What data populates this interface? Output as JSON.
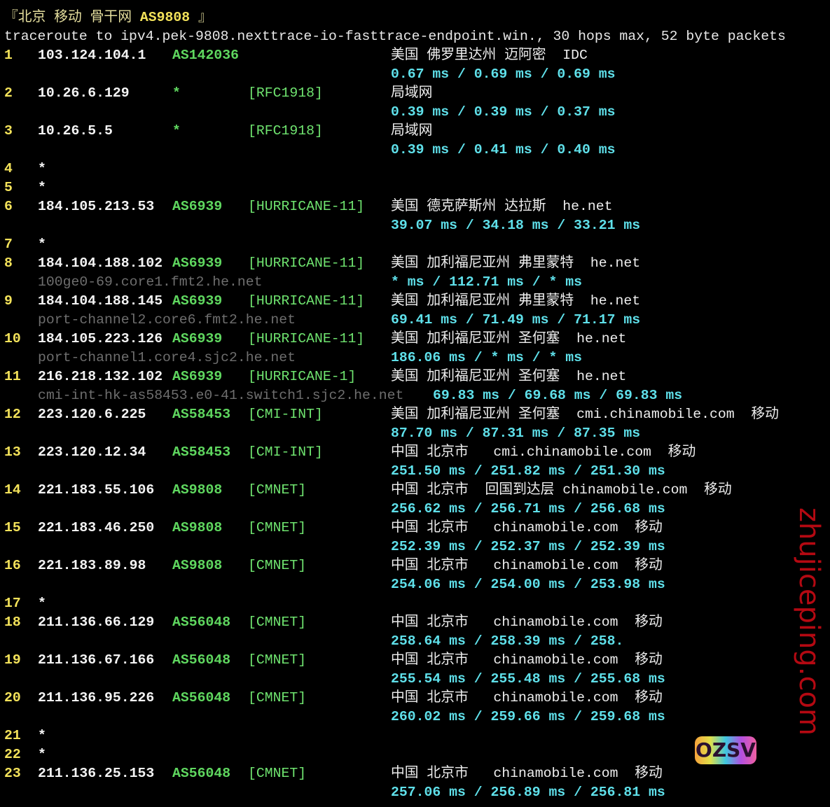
{
  "title": {
    "prefix": "『北京 移动 骨干网 ",
    "asn": "AS9808",
    "suffix": " 』"
  },
  "command": "traceroute to ipv4.pek-9808.nexttrace-io-fasttrace-endpoint.win., 30 hops max, 52 byte packets",
  "hops": [
    {
      "num": "1",
      "ip": "103.124.104.1",
      "asn": "AS142036",
      "tag": "",
      "location": "美国 佛罗里达州 迈阿密  IDC",
      "rtt": "0.67 ms / 0.69 ms / 0.69 ms"
    },
    {
      "num": "2",
      "ip": "10.26.6.129",
      "asn": "*",
      "tag": "[RFC1918]",
      "location": "局域网",
      "rtt": "0.39 ms / 0.39 ms / 0.37 ms"
    },
    {
      "num": "3",
      "ip": "10.26.5.5",
      "asn": "*",
      "tag": "[RFC1918]",
      "location": "局域网",
      "rtt": "0.39 ms / 0.41 ms / 0.40 ms"
    },
    {
      "num": "4",
      "ip": "*"
    },
    {
      "num": "5",
      "ip": "*"
    },
    {
      "num": "6",
      "ip": "184.105.213.53",
      "asn": "AS6939",
      "tag": "[HURRICANE-11]",
      "location": "美国 德克萨斯州 达拉斯  he.net",
      "rtt": "39.07 ms / 34.18 ms / 33.21 ms"
    },
    {
      "num": "7",
      "ip": "*"
    },
    {
      "num": "8",
      "ip": "184.104.188.102",
      "asn": "AS6939",
      "tag": "[HURRICANE-11]",
      "location": "美国 加利福尼亚州 弗里蒙特  he.net",
      "hostname": "100ge0-69.core1.fmt2.he.net",
      "rtt": "* ms / 112.71 ms / * ms"
    },
    {
      "num": "9",
      "ip": "184.104.188.145",
      "asn": "AS6939",
      "tag": "[HURRICANE-11]",
      "location": "美国 加利福尼亚州 弗里蒙特  he.net",
      "hostname": "port-channel2.core6.fmt2.he.net",
      "rtt": "69.41 ms / 71.49 ms / 71.17 ms"
    },
    {
      "num": "10",
      "ip": "184.105.223.126",
      "asn": "AS6939",
      "tag": "[HURRICANE-11]",
      "location": "美国 加利福尼亚州 圣何塞  he.net",
      "hostname": "port-channel1.core4.sjc2.he.net",
      "rtt": "186.06 ms / * ms / * ms"
    },
    {
      "num": "11",
      "ip": "216.218.132.102",
      "asn": "AS6939",
      "tag": "[HURRICANE-1]",
      "location": "美国 加利福尼亚州 圣何塞  he.net",
      "hostname": "cmi-int-hk-as58453.e0-41.switch1.sjc2.he.net",
      "rtt": "69.83 ms / 69.68 ms / 69.83 ms"
    },
    {
      "num": "12",
      "ip": "223.120.6.225",
      "asn": "AS58453",
      "tag": "[CMI-INT]",
      "location": "美国 加利福尼亚州 圣何塞  cmi.chinamobile.com  移动",
      "rtt": "87.70 ms / 87.31 ms / 87.35 ms"
    },
    {
      "num": "13",
      "ip": "223.120.12.34",
      "asn": "AS58453",
      "tag": "[CMI-INT]",
      "location": "中国 北京市   cmi.chinamobile.com  移动",
      "rtt": "251.50 ms / 251.82 ms / 251.30 ms"
    },
    {
      "num": "14",
      "ip": "221.183.55.106",
      "asn": "AS9808",
      "tag": "[CMNET]",
      "location": "中国 北京市  回国到达层 chinamobile.com  移动",
      "rtt": "256.62 ms / 256.71 ms / 256.68 ms"
    },
    {
      "num": "15",
      "ip": "221.183.46.250",
      "asn": "AS9808",
      "tag": "[CMNET]",
      "location": "中国 北京市   chinamobile.com  移动",
      "rtt": "252.39 ms / 252.37 ms / 252.39 ms"
    },
    {
      "num": "16",
      "ip": "221.183.89.98",
      "asn": "AS9808",
      "tag": "[CMNET]",
      "location": "中国 北京市   chinamobile.com  移动",
      "rtt": "254.06 ms / 254.00 ms / 253.98 ms"
    },
    {
      "num": "17",
      "ip": "*"
    },
    {
      "num": "18",
      "ip": "211.136.66.129",
      "asn": "AS56048",
      "tag": "[CMNET]",
      "location": "中国 北京市   chinamobile.com  移动",
      "rtt": "258.64 ms / 258.39 ms / 258."
    },
    {
      "num": "19",
      "ip": "211.136.67.166",
      "asn": "AS56048",
      "tag": "[CMNET]",
      "location": "中国 北京市   chinamobile.com  移动",
      "rtt": "255.54 ms / 255.48 ms / 255.68 ms"
    },
    {
      "num": "20",
      "ip": "211.136.95.226",
      "asn": "AS56048",
      "tag": "[CMNET]",
      "location": "中国 北京市   chinamobile.com  移动",
      "rtt": "260.02 ms / 259.66 ms / 259.68 ms"
    },
    {
      "num": "21",
      "ip": "*"
    },
    {
      "num": "22",
      "ip": "*"
    },
    {
      "num": "23",
      "ip": "211.136.25.153",
      "asn": "AS56048",
      "tag": "[CMNET]",
      "location": "中国 北京市   chinamobile.com  移动",
      "rtt": "257.06 ms / 256.89 ms / 256.81 ms"
    }
  ],
  "watermark": "zhujiceping.com",
  "logo": "OZSV",
  "colors": {
    "background": "#000000",
    "hop_number": "#f3e25a",
    "asn": "#5fd75f",
    "rtt": "#5fe0ea",
    "hostname": "#6e6e6e",
    "watermark": "#c80a14"
  }
}
